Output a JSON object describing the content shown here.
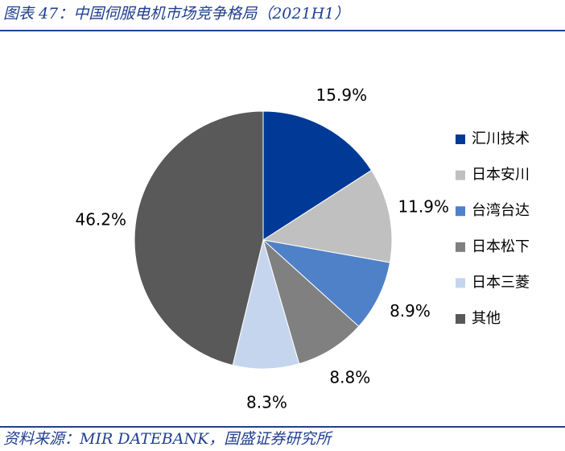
{
  "chart_data": {
    "type": "pie",
    "title": "图表 47：中国伺服电机市场竞争格局（2021H1）",
    "source": "资料来源：MIR DATEBANK，国盛证券研究所",
    "categories": [
      "汇川技术",
      "日本安川",
      "台湾台达",
      "日本松下",
      "日本三菱",
      "其他"
    ],
    "values": [
      15.9,
      11.9,
      8.9,
      8.8,
      8.3,
      46.2
    ],
    "value_labels": [
      "15.9%",
      "11.9%",
      "8.9%",
      "8.8%",
      "8.3%",
      "46.2%"
    ],
    "colors": [
      "#003a96",
      "#c0c0c0",
      "#4f81c8",
      "#808080",
      "#c5d5ee",
      "#595959"
    ],
    "legend": "right"
  }
}
